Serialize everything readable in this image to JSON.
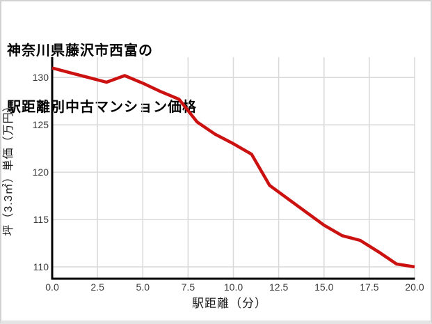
{
  "header": {
    "title_line1": "神奈川県藤沢市西富の",
    "title_line2": "駅距離別中古マンション価格"
  },
  "chart_data": {
    "type": "line",
    "title": "神奈川県藤沢市西富の駅距離別中古マンション価格",
    "xlabel": "駅距離（分）",
    "ylabel": "坪（3.3㎡）単価（万円）",
    "x": [
      0,
      1,
      2,
      3,
      4,
      5,
      6,
      7,
      8,
      9,
      10,
      11,
      12,
      13,
      14,
      15,
      16,
      17,
      18,
      19,
      20
    ],
    "y": [
      131.0,
      130.5,
      130.0,
      129.5,
      130.2,
      129.4,
      128.5,
      127.7,
      125.3,
      124.0,
      123.0,
      121.9,
      118.6,
      117.2,
      115.8,
      114.4,
      113.3,
      112.8,
      111.6,
      110.3,
      110.0
    ],
    "xlim": [
      0,
      20
    ],
    "ylim": [
      108.75,
      132.15
    ],
    "x_ticks": [
      0,
      2.5,
      5,
      7.5,
      10,
      12.5,
      15,
      17.5,
      20
    ],
    "x_tick_labels": [
      "0.0",
      "2.5",
      "5.0",
      "7.5",
      "10.0",
      "12.5",
      "15.0",
      "17.5",
      "20.0"
    ],
    "y_ticks": [
      110,
      115,
      120,
      125,
      130
    ],
    "y_tick_labels": [
      "110",
      "115",
      "120",
      "125",
      "130"
    ],
    "grid": true,
    "legend": null,
    "line_color": "#cc1111",
    "grid_color": "#d9d9d9",
    "axis_color": "#000000"
  }
}
